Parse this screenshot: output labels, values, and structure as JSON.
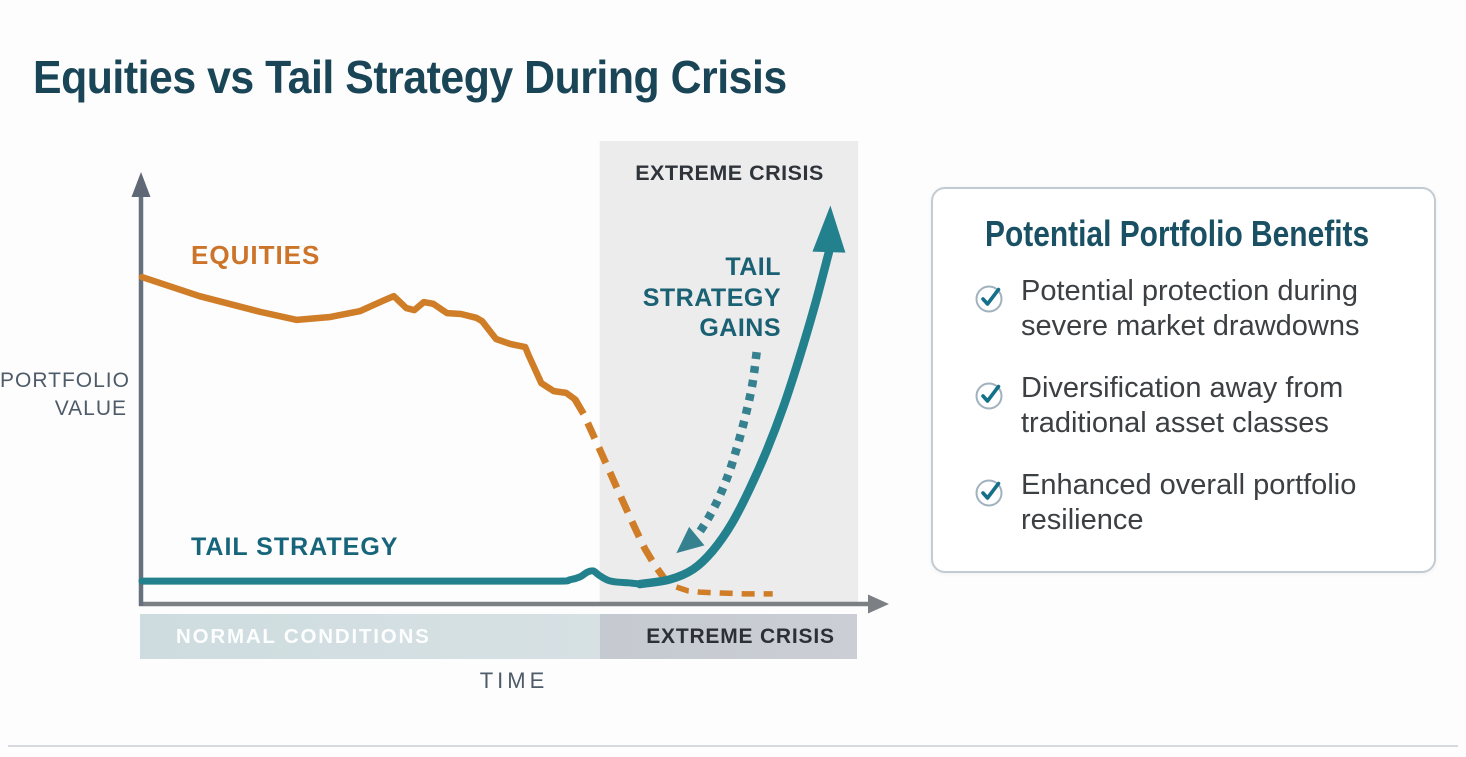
{
  "title": "Equities vs Tail Strategy During Crisis",
  "chart": {
    "labels": {
      "equities": "EQUITIES",
      "tail_strategy": "TAIL STRATEGY",
      "extreme_crisis_top": "EXTREME CRISIS",
      "tail_strategy_gains": "TAIL\nSTRATEGY\nGAINS",
      "portfolio_value": "PORTFOLIO\nVALUE",
      "time": "TIME",
      "band_normal": "NORMAL CONDITIONS",
      "band_extreme": "EXTREME CRISIS"
    },
    "colors": {
      "equities": "#D07D28",
      "tail_strategy": "#23808D",
      "axis_x": "#7C7F84",
      "axis_y": "#67707D",
      "axis_head_y": "#5F6975",
      "crisis_region": "#ECECED",
      "dotted_arrow": "#35828F"
    }
  },
  "chart_data": {
    "type": "line",
    "title": "Equities vs Tail Strategy During Crisis",
    "xlabel": "TIME",
    "ylabel": "PORTFOLIO VALUE",
    "x_range": [
      0,
      100
    ],
    "y_range": [
      0,
      100
    ],
    "grid": false,
    "regions": [
      {
        "name": "extreme-crisis",
        "label": "EXTREME CRISIS",
        "x0": 62.7,
        "x1": 98.1,
        "y0": 0,
        "y1": 109.2,
        "fill": "#ECECED"
      }
    ],
    "condition_bands": [
      {
        "label": "NORMAL CONDITIONS",
        "x0": -0.3,
        "x1": 62.7
      },
      {
        "label": "EXTREME CRISIS",
        "x0": 62.7,
        "x1": 97.9
      }
    ],
    "series": [
      {
        "name": "EQUITIES",
        "style": "solid",
        "color": "#D07D28",
        "width": 6.5,
        "points": [
          [
            0,
            77.1
          ],
          [
            7.9,
            72.6
          ],
          [
            16.2,
            68.9
          ],
          [
            21.2,
            67.0
          ],
          [
            25.8,
            67.7
          ],
          [
            29.9,
            69.1
          ],
          [
            33.0,
            71.5
          ],
          [
            34.5,
            72.6
          ],
          [
            36.2,
            69.8
          ],
          [
            37.3,
            69.3
          ],
          [
            38.6,
            71.2
          ],
          [
            39.9,
            70.8
          ],
          [
            41.8,
            68.6
          ],
          [
            43.7,
            68.4
          ],
          [
            45.8,
            67.5
          ],
          [
            46.6,
            66.7
          ],
          [
            48.5,
            62.5
          ],
          [
            50.5,
            61.3
          ],
          [
            52.5,
            60.6
          ],
          [
            53.0,
            58.5
          ],
          [
            54.7,
            52.1
          ],
          [
            56.4,
            50.2
          ],
          [
            58.1,
            49.8
          ],
          [
            59.3,
            48.3
          ]
        ]
      },
      {
        "name": "EQUITIES (crisis drop, dashed)",
        "style": "dashed",
        "color": "#D07D28",
        "width": 7,
        "dash": "17 10",
        "points": [
          [
            59.3,
            48.3
          ],
          [
            60.5,
            44.8
          ],
          [
            62.3,
            38.0
          ],
          [
            64.1,
            31.1
          ],
          [
            65.8,
            24.5
          ],
          [
            67.4,
            18.4
          ],
          [
            68.9,
            13.0
          ],
          [
            70.3,
            9.0
          ],
          [
            71.6,
            5.9
          ],
          [
            73.2,
            4.0
          ]
        ]
      },
      {
        "name": "EQUITIES (crisis floor, dashed)",
        "style": "dashed",
        "color": "#D07D28",
        "width": 5.5,
        "dash": "13 9",
        "points": [
          [
            73.2,
            4.0
          ],
          [
            74.8,
            3.1
          ],
          [
            76.4,
            2.8
          ],
          [
            79.2,
            2.6
          ],
          [
            82.6,
            2.4
          ],
          [
            86.4,
            2.4
          ]
        ]
      },
      {
        "name": "TAIL STRATEGY (normal conditions)",
        "style": "solid",
        "color": "#23808D",
        "width": 7,
        "points": [
          [
            0,
            5.4
          ],
          [
            21.6,
            5.4
          ],
          [
            42.2,
            5.4
          ],
          [
            56.6,
            5.4
          ],
          [
            58.6,
            5.7
          ],
          [
            60.0,
            6.4
          ],
          [
            61.0,
            7.5
          ],
          [
            61.8,
            7.8
          ],
          [
            62.6,
            6.8
          ],
          [
            63.7,
            5.7
          ],
          [
            64.9,
            5.2
          ],
          [
            66.6,
            5.0
          ],
          [
            68.2,
            4.7
          ]
        ]
      },
      {
        "name": "TAIL STRATEGY (crisis gains)",
        "style": "solid",
        "color": "#23808D",
        "width": 8.5,
        "points": [
          [
            68.2,
            4.7
          ],
          [
            72.3,
            5.8
          ],
          [
            75.5,
            8.2
          ],
          [
            78.2,
            12.6
          ],
          [
            80.8,
            19.0
          ],
          [
            83.2,
            27.0
          ],
          [
            85.6,
            36.3
          ],
          [
            87.9,
            46.7
          ],
          [
            90.0,
            57.8
          ],
          [
            92.1,
            70.0
          ],
          [
            94.1,
            83.0
          ]
        ],
        "arrow": {
          "tip": [
            94.3,
            94.0
          ],
          "width": 33
        }
      }
    ],
    "annotations": [
      {
        "name": "tail-strategy-gains-arrow",
        "style": "dotted",
        "color": "#35818F",
        "width": 8.5,
        "dash": "7 7",
        "points": [
          [
            84.2,
            59.4
          ],
          [
            83.6,
            51.7
          ],
          [
            82.7,
            44.6
          ],
          [
            81.6,
            37.5
          ],
          [
            80.4,
            30.9
          ],
          [
            79.0,
            25.0
          ],
          [
            77.5,
            20.0
          ],
          [
            76.0,
            16.0
          ]
        ],
        "arrow": {
          "tip": [
            73.2,
            12.0
          ],
          "width": 24
        }
      }
    ],
    "axes": {
      "x": {
        "label": "TIME",
        "arrow": true
      },
      "y": {
        "label": "PORTFOLIO VALUE",
        "arrow": true
      }
    }
  },
  "benefits_card": {
    "heading": "Potential Portfolio Benefits",
    "items": [
      "Potential protection during severe market drawdowns",
      "Diversification away from traditional asset classes",
      "Enhanced overall portfolio resilience"
    ],
    "icon": "check-circle",
    "icon_colors": {
      "circle": "#9FB2BE",
      "check": "#15718A"
    }
  }
}
